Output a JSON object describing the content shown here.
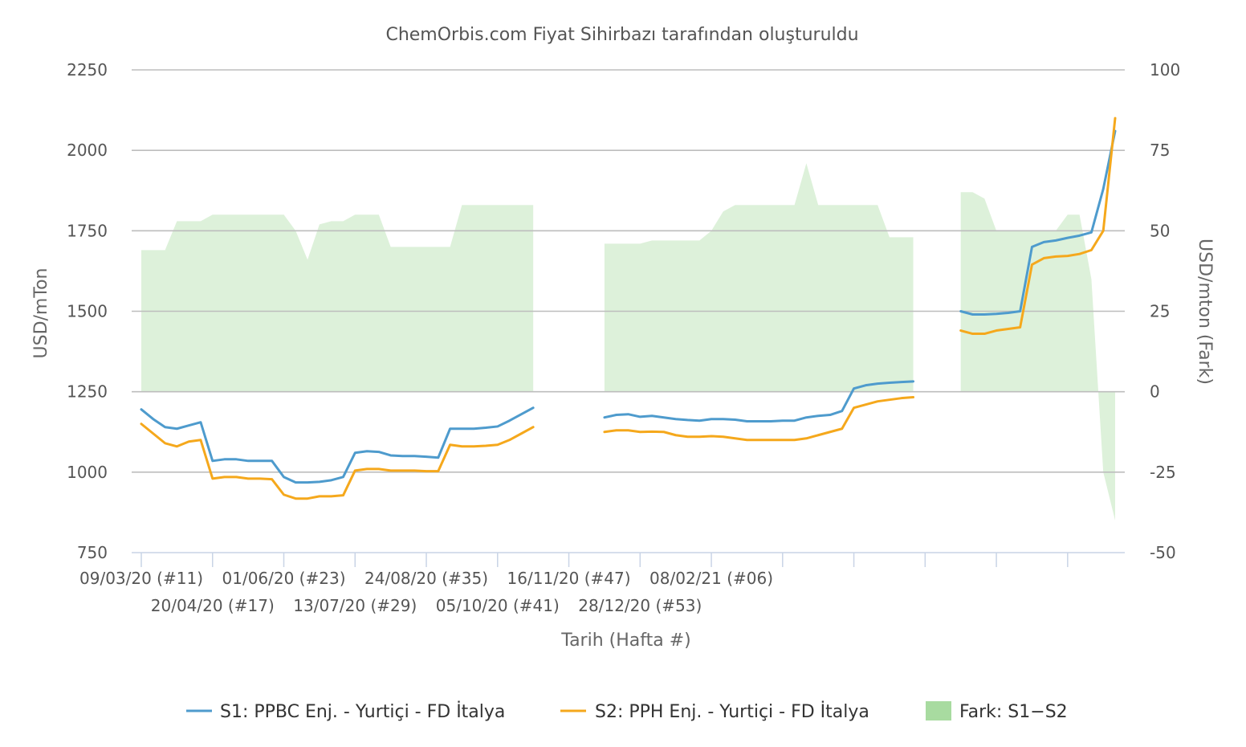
{
  "chart_data": {
    "type": "line",
    "title": "ChemOrbis.com Fiyat Sihirbazı tarafından oluşturuldu",
    "xlabel": "Tarih (Hafta #)",
    "ylabel": "USD/mTon",
    "y2label": "USD/mton (Fark)",
    "ylim": [
      750,
      2250
    ],
    "y2lim": [
      -50,
      100
    ],
    "yticks": [
      "750",
      "1000",
      "1250",
      "1500",
      "1750",
      "2000",
      "2250"
    ],
    "y2ticks": [
      "-50",
      "-25",
      "0",
      "25",
      "50",
      "75",
      "100"
    ],
    "xtick_labels_row1": [
      "09/03/20 (#11)",
      "01/06/20 (#23)",
      "24/08/20 (#35)",
      "16/11/20 (#47)",
      "08/02/21 (#06)"
    ],
    "xtick_labels_row2": [
      "20/04/20 (#17)",
      "13/07/20 (#29)",
      "05/10/20 (#41)",
      "28/12/20 (#53)"
    ],
    "grid": true,
    "legend_position": "bottom",
    "week_index_note_start": "09/03/20 (#11)",
    "series": [
      {
        "name": "S1: PPBC Enj. - Yurtiçi  - FD İtalya",
        "color": "#4e9bcd",
        "axis": "left",
        "values": [
          1195,
          1165,
          1140,
          1135,
          1145,
          1155,
          1035,
          1040,
          1040,
          1035,
          1035,
          1035,
          985,
          968,
          968,
          970,
          975,
          985,
          1060,
          1065,
          1063,
          1052,
          1050,
          1050,
          1048,
          1045,
          1135,
          1135,
          1135,
          1138,
          1142,
          1160,
          1180,
          1200,
          null,
          null,
          null,
          null,
          null,
          1170,
          1178,
          1180,
          1172,
          1175,
          1170,
          1165,
          1162,
          1160,
          1165,
          1165,
          1163,
          1158,
          1158,
          1158,
          1160,
          1160,
          1170,
          1175,
          1178,
          1190,
          1260,
          1270,
          1275,
          1278,
          1280,
          1282,
          null,
          null,
          null,
          1500,
          1490,
          1490,
          1492,
          1495,
          1500,
          1700,
          1715,
          1720,
          1728,
          1735,
          1745,
          1880,
          2060
        ]
      },
      {
        "name": "S2: PPH Enj. - Yurtiçi  - FD İtalya",
        "color": "#f5a81c",
        "axis": "left",
        "values": [
          1150,
          1120,
          1090,
          1080,
          1095,
          1100,
          980,
          985,
          985,
          980,
          980,
          978,
          930,
          918,
          918,
          925,
          925,
          928,
          1005,
          1010,
          1010,
          1005,
          1005,
          1005,
          1003,
          1003,
          1085,
          1080,
          1080,
          1082,
          1085,
          1100,
          1120,
          1140,
          null,
          null,
          null,
          null,
          null,
          1125,
          1130,
          1130,
          1125,
          1126,
          1125,
          1115,
          1110,
          1110,
          1112,
          1110,
          1105,
          1100,
          1100,
          1100,
          1100,
          1100,
          1105,
          1115,
          1125,
          1135,
          1200,
          1210,
          1220,
          1225,
          1230,
          1233,
          null,
          null,
          null,
          1440,
          1430,
          1430,
          1440,
          1445,
          1450,
          1645,
          1665,
          1670,
          1672,
          1678,
          1690,
          1750,
          2100
        ]
      },
      {
        "name": "Fark: S1−S2",
        "color": "#a8dba0",
        "axis": "right",
        "type": "area",
        "values": [
          44,
          44,
          44,
          53,
          53,
          53,
          55,
          55,
          55,
          55,
          55,
          55,
          55,
          50,
          41,
          52,
          53,
          53,
          55,
          55,
          55,
          45,
          45,
          45,
          45,
          45,
          45,
          58,
          58,
          58,
          58,
          58,
          58,
          58,
          null,
          null,
          null,
          null,
          null,
          46,
          46,
          46,
          46,
          47,
          47,
          47,
          47,
          47,
          50,
          56,
          58,
          58,
          58,
          58,
          58,
          58,
          71,
          58,
          58,
          58,
          58,
          58,
          58,
          48,
          48,
          48,
          null,
          null,
          null,
          62,
          62,
          60,
          50,
          50,
          50,
          50,
          50,
          50,
          55,
          55,
          35,
          -25,
          -40
        ]
      }
    ]
  },
  "legend": {
    "items": [
      {
        "label": "S1: PPBC Enj. - Yurtiçi  - FD İtalya",
        "color": "#4e9bcd",
        "kind": "line"
      },
      {
        "label": "S2: PPH Enj. - Yurtiçi  - FD İtalya",
        "color": "#f5a81c",
        "kind": "line"
      },
      {
        "label": "Fark: S1−S2",
        "color": "#a8dba0",
        "kind": "area"
      }
    ]
  }
}
